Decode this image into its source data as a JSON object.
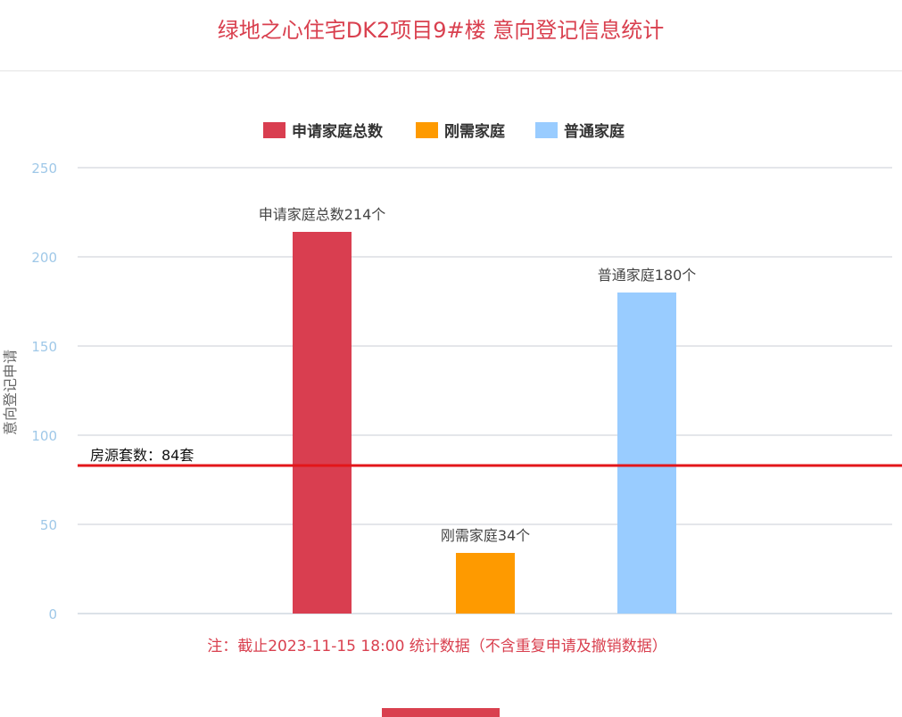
{
  "page": {
    "title": "绿地之心住宅DK2项目9#楼 意向登记信息统计",
    "note": "注：截止2023-11-15 18:00 统计数据（不含重复申请及撤销数据）"
  },
  "chart_data": {
    "type": "bar",
    "ylabel": "意向登记申请",
    "ylim": [
      0,
      250
    ],
    "yticks": [
      0,
      50,
      100,
      150,
      200,
      250
    ],
    "grid": true,
    "legend_position": "top-center",
    "series": [
      {
        "name": "申请家庭总数",
        "value": 214,
        "color": "#d93e50",
        "data_label": "申请家庭总数214个"
      },
      {
        "name": "刚需家庭",
        "value": 34,
        "color": "#fe9a00",
        "data_label": "刚需家庭34个"
      },
      {
        "name": "普通家庭",
        "value": 180,
        "color": "#99ccff",
        "data_label": "普通家庭180个"
      }
    ],
    "reference_line": {
      "value": 84,
      "label": "房源套数：84套",
      "color": "#e3161a"
    }
  },
  "colors": {
    "accent": "#d9404f",
    "axis_tick_text": "#9fc8e8",
    "grid": "#c8cdd4"
  }
}
